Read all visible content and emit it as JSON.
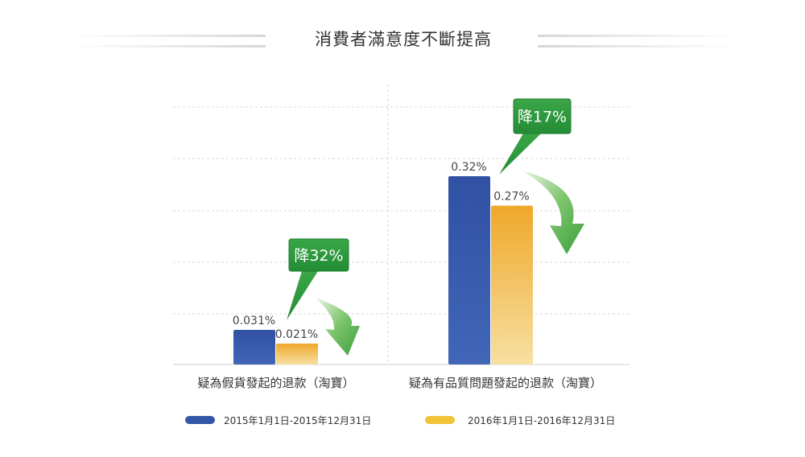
{
  "title": "消費者滿意度不斷提高",
  "colors": {
    "series_2015": "#3456a6",
    "series_2016": "#f2b335",
    "callout": "#2e9b3f",
    "arrow": "#4cae49",
    "grid": "#d8d8d8",
    "text": "#333333"
  },
  "chart_data": {
    "type": "bar",
    "title": "消費者滿意度不斷提高",
    "categories": [
      "疑為假貨發起的退款（淘寶）",
      "疑為有品質問題發起的退款（淘寶）"
    ],
    "series": [
      {
        "name": "2015年1月1日-2015年12月31日",
        "values": [
          0.031,
          0.32
        ],
        "labels": [
          "0.031%",
          "0.32%"
        ]
      },
      {
        "name": "2016年1月1日-2016年12月31日",
        "values": [
          0.021,
          0.27
        ],
        "labels": [
          "0.021%",
          "0.27%"
        ]
      }
    ],
    "unit": "%",
    "annotations": [
      "降32%",
      "降17%"
    ],
    "grid": true,
    "legend": "bottom",
    "yaxis_visible": false
  }
}
